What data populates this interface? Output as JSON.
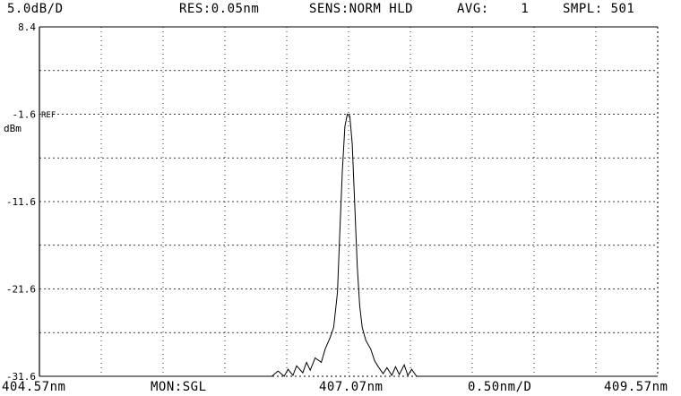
{
  "header": {
    "scale": "5.0dB/D",
    "resolution": "RES:0.05nm",
    "sensitivity": "SENS:NORM HLD",
    "average": "AVG:    1",
    "sampling": "SMPL: 501"
  },
  "footer": {
    "start_wavelength": "404.57nm",
    "monitor": "MON:SGL",
    "center_wavelength": "407.07nm",
    "span_per_div": "0.50nm/D",
    "stop_wavelength": "409.57nm"
  },
  "ref_marker": "REF",
  "y_unit": "dBm",
  "chart_data": {
    "type": "line",
    "xlim": [
      404.57,
      409.57
    ],
    "ylim": [
      -31.6,
      8.4
    ],
    "x_divisions": 10,
    "y_divisions": 8,
    "grid": true,
    "y_tick_labels": [
      "8.4",
      "-1.6",
      "-11.6",
      "-21.6",
      "-31.6"
    ],
    "y_tick_values": [
      8.4,
      -1.6,
      -11.6,
      -21.6,
      -31.6
    ],
    "series": [
      {
        "x": [
          404.57,
          406.45,
          406.5,
          406.55,
          406.58,
          406.62,
          406.65,
          406.7,
          406.73,
          406.76,
          406.8,
          406.85,
          406.88,
          406.92,
          406.95,
          406.98,
          407.0,
          407.02,
          407.04,
          407.06,
          407.08,
          407.1,
          407.12,
          407.14,
          407.16,
          407.18,
          407.21,
          407.25,
          407.28,
          407.31,
          407.35,
          407.38,
          407.42,
          407.45,
          407.48,
          407.52,
          407.55,
          407.58,
          407.62,
          409.57
        ],
        "y": [
          -31.6,
          -31.6,
          -31.0,
          -31.6,
          -30.8,
          -31.5,
          -30.4,
          -31.2,
          -30.0,
          -30.9,
          -29.5,
          -30.0,
          -28.5,
          -27.2,
          -26.0,
          -22.0,
          -15.0,
          -8.0,
          -3.0,
          -1.6,
          -1.8,
          -5.0,
          -12.0,
          -19.0,
          -23.5,
          -26.0,
          -27.5,
          -28.5,
          -29.8,
          -30.5,
          -31.3,
          -30.6,
          -31.5,
          -30.5,
          -31.4,
          -30.3,
          -31.5,
          -30.8,
          -31.6,
          -31.6
        ]
      }
    ]
  }
}
